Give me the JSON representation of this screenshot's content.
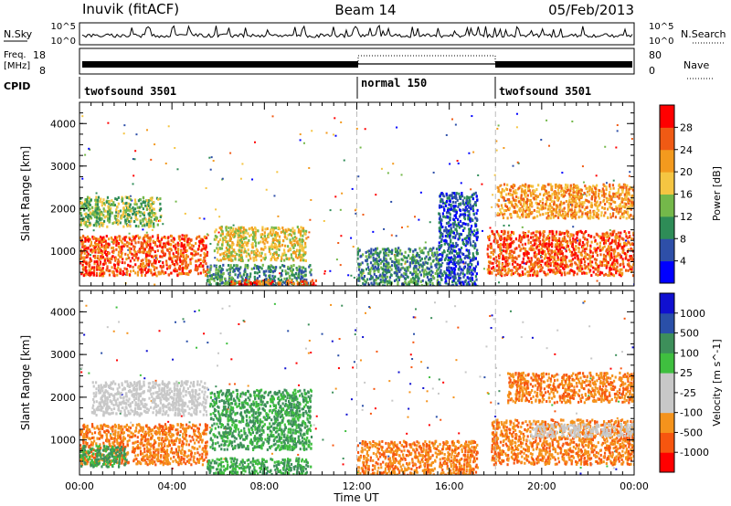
{
  "header": {
    "station": "Inuvik (fitACF)",
    "beam": "Beam 14",
    "date": "05/Feb/2013"
  },
  "top_panels": {
    "nsky_label": "N.Sky",
    "nsky_ticks": [
      "10^5",
      "10^0"
    ],
    "nsearch_label": "N.Search",
    "nsearch_ticks": [
      "10^5",
      "10^0"
    ],
    "freq_label_1": "Freq.",
    "freq_label_2": "[MHz]",
    "freq_ticks": [
      "18",
      "8"
    ],
    "nave_label": "Nave",
    "nave_ticks": [
      "80",
      "0"
    ],
    "cpid_label": "CPID",
    "cpid_segments": [
      {
        "label": "twofsound 3501",
        "start_hour": 0,
        "end_hour": 12
      },
      {
        "label": "normal 150",
        "start_hour": 12,
        "end_hour": 18
      },
      {
        "label": "twofsound 3501",
        "start_hour": 18,
        "end_hour": 24
      }
    ]
  },
  "colors": {
    "power": [
      "#0000ff",
      "#2e4fa8",
      "#2e8c57",
      "#74b84a",
      "#f5c542",
      "#f39a1e",
      "#f05a14",
      "#ff0000"
    ],
    "velocity": [
      "#ff0000",
      "#f7560f",
      "#f5931c",
      "#c8c8c8",
      "#c8c8c8",
      "#3fbf3f",
      "#3d8f5a",
      "#2a4fa8",
      "#1010d0"
    ]
  },
  "chart_data": [
    {
      "type": "heatmap",
      "title": "",
      "xlabel": "Time UT",
      "ylabel": "Slant Range [km]",
      "xlim_hours": [
        0,
        24
      ],
      "ylim_km": [
        180,
        4500
      ],
      "x_ticks": [
        "00:00",
        "04:00",
        "08:00",
        "12:00",
        "16:00",
        "20:00",
        "00:00"
      ],
      "y_ticks": [
        1000,
        2000,
        3000,
        4000
      ],
      "colorbar_label": "Power [dB]",
      "colorbar_ticks": [
        "4",
        "8",
        "12",
        "16",
        "20",
        "24",
        "28"
      ],
      "colorbar_range": [
        0,
        32
      ],
      "regions": [
        {
          "t0": 0.0,
          "t1": 5.5,
          "r0": 450,
          "r1": 1400,
          "level": 28
        },
        {
          "t0": 0.0,
          "t1": 3.5,
          "r0": 1600,
          "r1": 2300,
          "level": 14
        },
        {
          "t0": 5.4,
          "t1": 10.0,
          "r0": 200,
          "r1": 700,
          "level": 12
        },
        {
          "t0": 5.8,
          "t1": 9.8,
          "r0": 800,
          "r1": 1600,
          "level": 20
        },
        {
          "t0": 6.5,
          "t1": 10.2,
          "r0": 200,
          "r1": 350,
          "level": 28
        },
        {
          "t0": 12.0,
          "t1": 15.5,
          "r0": 200,
          "r1": 1100,
          "level": 10
        },
        {
          "t0": 15.5,
          "t1": 17.2,
          "r0": 200,
          "r1": 2400,
          "level": 8
        },
        {
          "t0": 17.6,
          "t1": 24.0,
          "r0": 450,
          "r1": 1500,
          "level": 28
        },
        {
          "t0": 18.0,
          "t1": 24.0,
          "r0": 1800,
          "r1": 2600,
          "level": 24
        }
      ]
    },
    {
      "type": "heatmap",
      "title": "",
      "xlabel": "Time UT",
      "ylabel": "Slant Range [km]",
      "xlim_hours": [
        0,
        24
      ],
      "ylim_km": [
        180,
        4500
      ],
      "x_ticks": [
        "00:00",
        "04:00",
        "08:00",
        "12:00",
        "16:00",
        "20:00",
        "00:00"
      ],
      "y_ticks": [
        1000,
        2000,
        3000,
        4000
      ],
      "colorbar_label": "Velocity [m s^-1]",
      "colorbar_ticks": [
        "1000",
        "500",
        "100",
        "25",
        "-25",
        "-100",
        "-500",
        "-1000"
      ],
      "regions": [
        {
          "t0": 0.0,
          "t1": 5.5,
          "r0": 450,
          "r1": 1400,
          "level": -300
        },
        {
          "t0": 0.0,
          "t1": 2.0,
          "r0": 400,
          "r1": 900,
          "level": 300
        },
        {
          "t0": 0.5,
          "t1": 5.5,
          "r0": 1600,
          "r1": 2400,
          "level": 0
        },
        {
          "t0": 5.6,
          "t1": 10.0,
          "r0": 800,
          "r1": 2200,
          "level": 300
        },
        {
          "t0": 5.5,
          "t1": 10.0,
          "r0": 200,
          "r1": 600,
          "level": 60
        },
        {
          "t0": 12.0,
          "t1": 17.2,
          "r0": 200,
          "r1": 1000,
          "level": -300
        },
        {
          "t0": 17.8,
          "t1": 24.0,
          "r0": 450,
          "r1": 1500,
          "level": -300
        },
        {
          "t0": 19.5,
          "t1": 24.0,
          "r0": 1100,
          "r1": 1400,
          "level": 0
        },
        {
          "t0": 18.5,
          "t1": 24.0,
          "r0": 1900,
          "r1": 2600,
          "level": -300
        }
      ]
    }
  ]
}
